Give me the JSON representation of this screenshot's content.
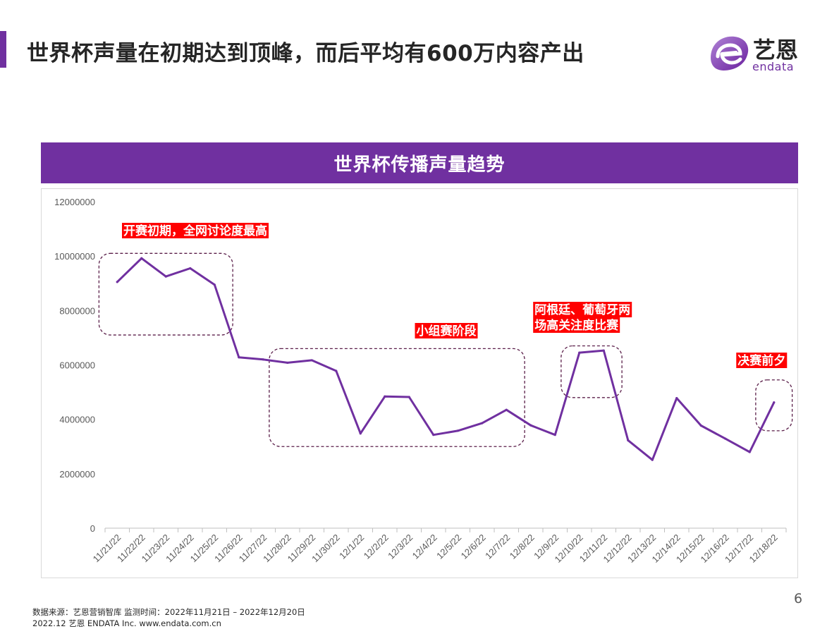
{
  "title": "世界杯声量在初期达到顶峰，而后平均有600万内容产出",
  "logo": {
    "cn": "艺恩",
    "en": "endata"
  },
  "page_number": "6",
  "footer": {
    "source": "数据来源：艺恩营销智库 监测时间：2022年11月21日 – 2022年12月20日",
    "copyright": "2022.12 艺恩 ENDATA Inc.    www.endata.com.cn"
  },
  "colors": {
    "accent": "#7030a0",
    "annotation_bg": "#ff0000",
    "box_border": "#5b1f4a"
  },
  "chart_data": {
    "type": "line",
    "title": "世界杯传播声量趋势",
    "xlabel": "",
    "ylabel": "",
    "ylim": [
      0,
      12000000
    ],
    "yticks": [
      "0",
      "2000000",
      "4000000",
      "6000000",
      "8000000",
      "10000000",
      "12000000"
    ],
    "grid": false,
    "categories": [
      "11/21/22",
      "11/22/22",
      "11/23/22",
      "11/24/22",
      "11/25/22",
      "11/26/22",
      "11/27/22",
      "11/28/22",
      "11/29/22",
      "11/30/22",
      "12/1/22",
      "12/2/22",
      "12/3/22",
      "12/4/22",
      "12/5/22",
      "12/6/22",
      "12/7/22",
      "12/8/22",
      "12/9/22",
      "12/10/22",
      "12/11/22",
      "12/12/22",
      "12/13/22",
      "12/14/22",
      "12/15/22",
      "12/16/22",
      "12/17/22",
      "12/18/22"
    ],
    "series": [
      {
        "values": [
          9050000,
          9920000,
          9250000,
          9550000,
          8950000,
          6280000,
          6200000,
          6080000,
          6170000,
          5780000,
          3480000,
          4840000,
          4820000,
          3430000,
          3580000,
          3860000,
          4350000,
          3780000,
          3430000,
          6450000,
          6530000,
          3230000,
          2510000,
          4780000,
          3770000,
          3290000,
          2800000,
          4620000
        ]
      }
    ],
    "annotations": [
      {
        "label": "开赛初期，全网讨论度最高",
        "from": 0,
        "to": 4,
        "y_top": 10100000,
        "y_bottom": 7100000
      },
      {
        "label": "小组赛阶段",
        "from": 7,
        "to": 16,
        "y_top": 6600000,
        "y_bottom": 3000000
      },
      {
        "label": "阿根廷、葡萄牙两场高关注度比赛",
        "label_lines": [
          "阿根廷、葡萄牙两",
          "场高关注度比赛"
        ],
        "from": 19,
        "to": 20,
        "y_top": 6700000,
        "y_bottom": 4800000
      },
      {
        "label": "决赛前夕",
        "from": 27,
        "to": 27,
        "y_top": 5450000,
        "y_bottom": 3580000
      }
    ]
  }
}
